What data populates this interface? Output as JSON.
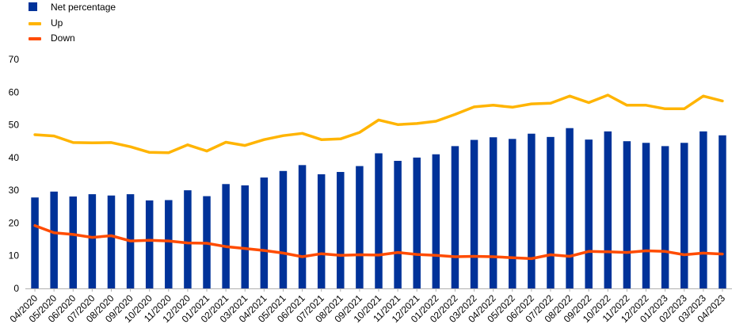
{
  "chart_data": {
    "type": "bar",
    "categories": [
      "04/2020",
      "05/2020",
      "06/2020",
      "07/2020",
      "08/2020",
      "09/2020",
      "10/2020",
      "11/2020",
      "12/2020",
      "01/2021",
      "02/2021",
      "03/2021",
      "04/2021",
      "05/2021",
      "06/2021",
      "07/2021",
      "08/2021",
      "09/2021",
      "10/2021",
      "11/2021",
      "12/2021",
      "01/2022",
      "02/2022",
      "03/2022",
      "04/2022",
      "05/2022",
      "06/2022",
      "07/2022",
      "08/2022",
      "09/2022",
      "10/2022",
      "11/2022",
      "12/2022",
      "01/2023",
      "02/2023",
      "03/2023",
      "04/2023"
    ],
    "series": [
      {
        "name": "Net percentage",
        "type": "bar",
        "color": "#003299",
        "values": [
          27.8,
          29.6,
          28.1,
          28.8,
          28.4,
          28.8,
          26.9,
          27.0,
          30.0,
          28.2,
          31.9,
          31.5,
          33.9,
          35.9,
          37.7,
          34.9,
          35.6,
          37.4,
          41.3,
          39.0,
          40.0,
          41.0,
          43.5,
          45.4,
          46.2,
          45.7,
          47.3,
          46.3,
          49.0,
          45.5,
          48.0,
          45.0,
          44.5,
          43.5,
          44.5,
          48.0,
          46.8
        ]
      },
      {
        "name": "Up",
        "type": "line",
        "color": "#ffb400",
        "values": [
          47.0,
          46.6,
          44.6,
          44.5,
          44.6,
          43.3,
          41.6,
          41.5,
          43.9,
          42.0,
          44.7,
          43.7,
          45.5,
          46.7,
          47.4,
          45.5,
          45.7,
          47.7,
          51.5,
          50.1,
          50.4,
          51.1,
          53.2,
          55.5,
          56.0,
          55.4,
          56.4,
          56.6,
          58.8,
          56.8,
          59.1,
          56.0,
          56.0,
          54.9,
          54.9,
          58.8,
          57.3
        ]
      },
      {
        "name": "Down",
        "type": "line",
        "color": "#ff4b00",
        "values": [
          19.2,
          17.0,
          16.5,
          15.6,
          16.1,
          14.5,
          14.7,
          14.5,
          13.9,
          13.8,
          12.8,
          12.2,
          11.6,
          10.8,
          9.7,
          10.6,
          10.1,
          10.3,
          10.2,
          11.0,
          10.4,
          10.1,
          9.7,
          9.8,
          9.7,
          9.4,
          9.1,
          10.3,
          9.8,
          11.3,
          11.2,
          11.0,
          11.5,
          11.3,
          10.3,
          10.8,
          10.5
        ]
      }
    ],
    "yticks": [
      0,
      10,
      20,
      30,
      40,
      50,
      60,
      70
    ],
    "ylim": [
      0,
      70
    ],
    "legend_position": "top-left",
    "grid": false
  }
}
